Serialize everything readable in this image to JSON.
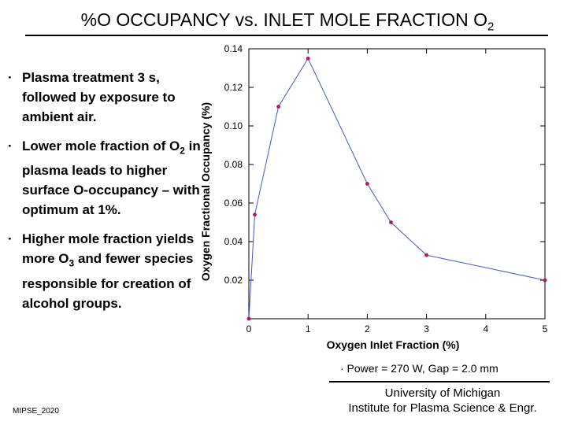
{
  "slide": {
    "title": {
      "text": "%O OCCUPANCY vs. INLET MOLE FRACTION O",
      "sub": "2"
    },
    "bullets": [
      {
        "symbol": "·",
        "parts": [
          {
            "t": "Plasma treatment 3 s, followed by exposure to ambient air."
          }
        ]
      },
      {
        "symbol": "·",
        "parts": [
          {
            "t": "Lower mole fraction of O"
          },
          {
            "sub": "2"
          },
          {
            "t": " in plasma  leads to higher surface O-occupancy – with optimum at 1%."
          }
        ]
      },
      {
        "symbol": "·",
        "parts": [
          {
            "t": "Higher mole fraction yields more O"
          },
          {
            "sub": "3"
          },
          {
            "t": "  and fewer species responsible for creation of alcohol groups."
          }
        ]
      }
    ],
    "note": "·  Power = 270 W, Gap = 2.0 mm",
    "affiliation": {
      "line1": "University of Michigan",
      "line2": "Institute for Plasma Science & Engr."
    },
    "footer_code": "MIPSE_2020"
  },
  "chart_data": {
    "type": "line",
    "title": "",
    "xlabel": "Oxygen Inlet Fraction (%)",
    "ylabel": "Oxygen Fractional Occupancy (%)",
    "xlim": [
      0,
      5
    ],
    "ylim": [
      0,
      0.14
    ],
    "xticks": [
      0,
      1,
      2,
      3,
      4,
      5
    ],
    "yticks": [
      0.02,
      0.04,
      0.06,
      0.08,
      0.1,
      0.12,
      0.14
    ],
    "ytick_labels": [
      "0.02",
      "0.04",
      "0.06",
      "0.08",
      "0.10",
      "0.12",
      "0.14"
    ],
    "grid": false,
    "line_color": "#4a57c8",
    "marker_color": "#b8185a",
    "series": [
      {
        "x": [
          0,
          0.1,
          0.5,
          1,
          2,
          2.4,
          3,
          5
        ],
        "y": [
          0.0,
          0.054,
          0.11,
          0.135,
          0.07,
          0.05,
          0.033,
          0.02
        ]
      }
    ]
  }
}
